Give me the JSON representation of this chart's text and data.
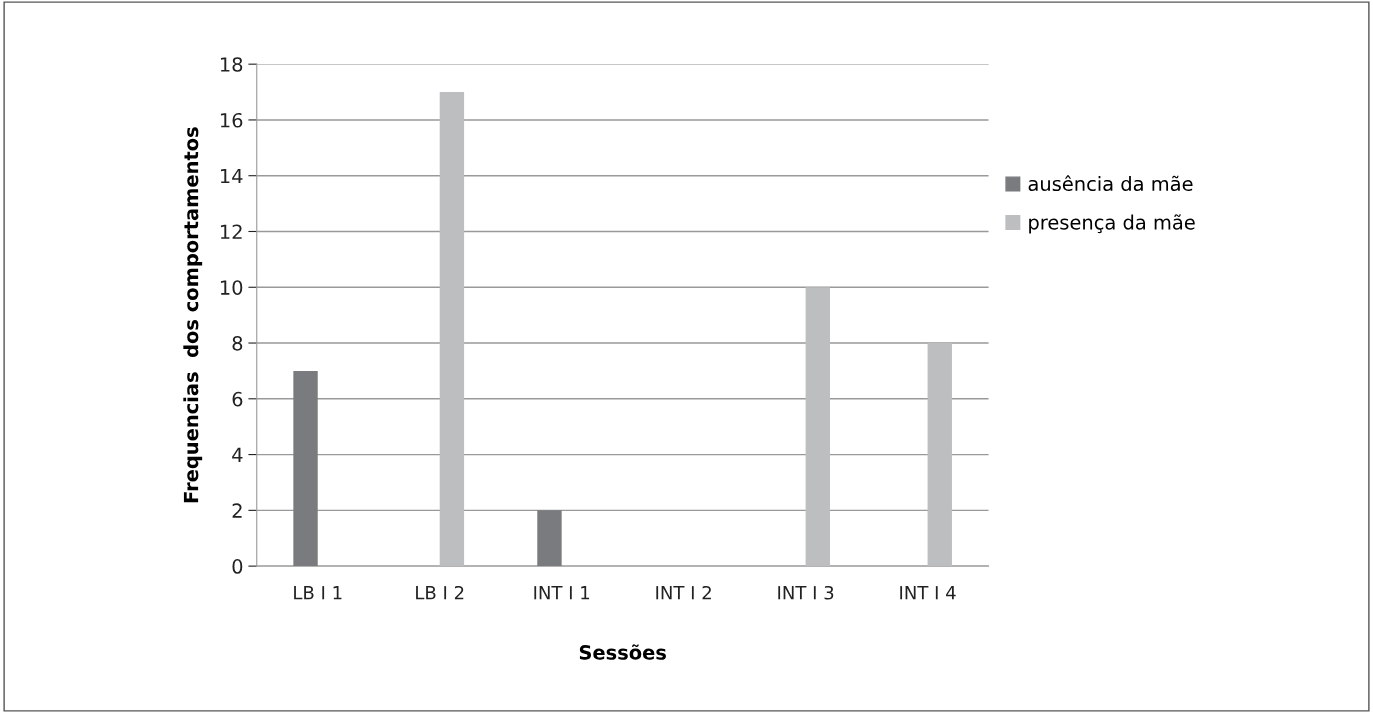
{
  "chart_data": {
    "type": "bar",
    "xlabel": "Sessões",
    "ylabel": "Frequencias  dos comportamentos",
    "categories": [
      "LB I 1",
      "LB I 2",
      "INT I 1",
      "INT I 2",
      "INT I 3",
      "INT I 4"
    ],
    "series": [
      {
        "name": "ausência da mãe",
        "color": "#7a7b7e",
        "values": [
          7,
          0,
          2,
          0,
          0,
          0
        ]
      },
      {
        "name": "presença da mãe",
        "color": "#bcbec0",
        "values": [
          0,
          17,
          0,
          0,
          10,
          8
        ]
      }
    ],
    "ylim": [
      0,
      18
    ],
    "yticks": [
      0,
      2,
      4,
      6,
      8,
      10,
      12,
      14,
      16,
      18
    ],
    "grid": "y",
    "legend": "right"
  }
}
